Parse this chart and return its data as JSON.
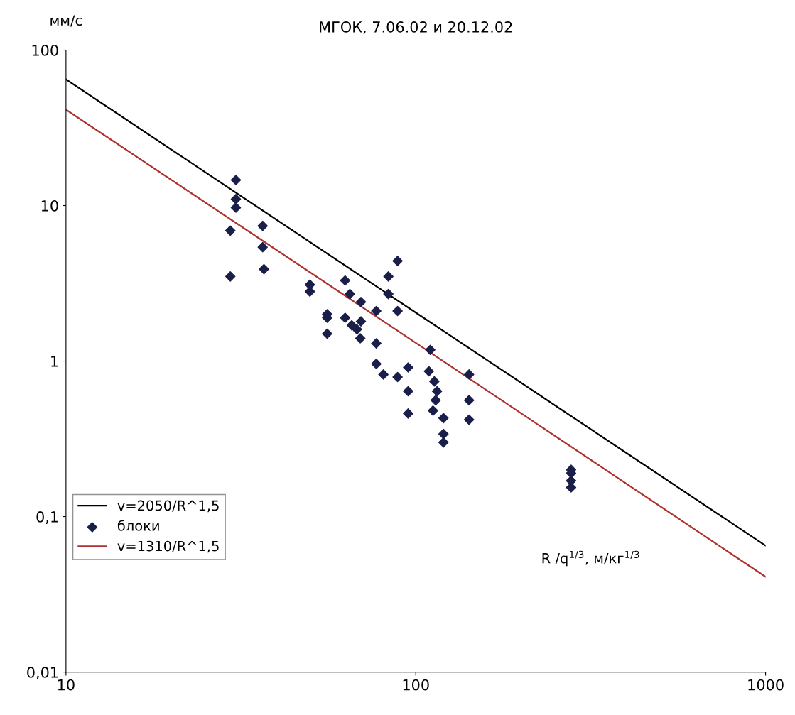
{
  "chart_data": {
    "type": "scatter",
    "title": "МГОК, 7.06.02 и 20.12.02",
    "xlabel": "R /q$^{1/3}$, м/кг$^{1/3}$",
    "ylabel": "мм/с",
    "log": "xy",
    "grid": false,
    "legend": "bottom left",
    "xlim": [
      10,
      1000
    ],
    "xticks": [
      10,
      100,
      1000
    ],
    "ylim": [
      0.01,
      100
    ],
    "yticks": [
      {
        "value": 0.01,
        "label": "0,01"
      },
      {
        "value": 0.1,
        "label": "0,1"
      },
      1,
      10,
      100
    ],
    "series": [
      {
        "name": "v=2050/R^1,5",
        "type": "line",
        "color": "#000000",
        "marker": "none",
        "line_style": "solid",
        "x": [
          10,
          100,
          1000
        ],
        "values": [
          64.8,
          2.05,
          0.065
        ]
      },
      {
        "name": "блоки",
        "color": "#1a1f4a",
        "marker": "diamond",
        "x": [
          30.6,
          30.6,
          30.6,
          29.5,
          36.5,
          36.5,
          29.5,
          36.8,
          49.8,
          49.8,
          55.8,
          55.8,
          55.8,
          62.8,
          64.8,
          69.7,
          77.1,
          62.8,
          65.6,
          67.9,
          69.4,
          69.7,
          77.1,
          88.7,
          83.5,
          83.5,
          88.7,
          77.1,
          80.8,
          88.7,
          95.1,
          95.1,
          95.1,
          110,
          109,
          113,
          115,
          114,
          112,
          120,
          120,
          120,
          142,
          142,
          142,
          278,
          278,
          278,
          278
        ],
        "values": [
          14.6,
          11.0,
          9.7,
          6.9,
          7.4,
          5.4,
          3.5,
          3.9,
          3.1,
          2.8,
          2.0,
          1.9,
          1.5,
          3.3,
          2.7,
          2.4,
          2.1,
          1.9,
          1.7,
          1.6,
          1.4,
          1.8,
          1.3,
          4.4,
          3.5,
          2.7,
          2.1,
          0.96,
          0.82,
          0.79,
          0.91,
          0.64,
          0.46,
          1.18,
          0.86,
          0.74,
          0.64,
          0.56,
          0.48,
          0.43,
          0.34,
          0.3,
          0.82,
          0.56,
          0.42,
          0.2,
          0.19,
          0.17,
          0.154
        ]
      },
      {
        "name": "v=1310/R^1,5",
        "type": "line",
        "color": "#b03030",
        "marker": "none",
        "line_style": "solid",
        "x": [
          10,
          100,
          1000
        ],
        "values": [
          41.4,
          1.31,
          0.041
        ]
      }
    ]
  }
}
